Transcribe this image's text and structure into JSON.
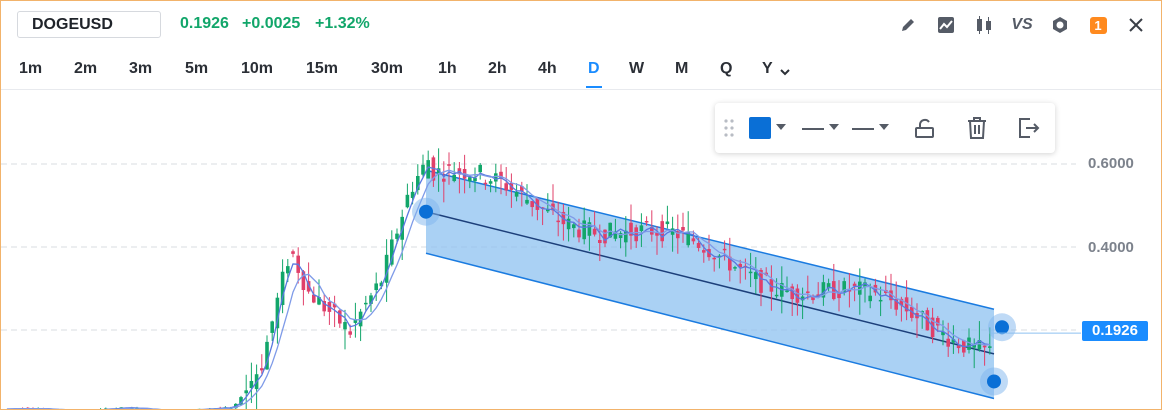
{
  "symbol": "DOGEUSD",
  "quote": {
    "price": "0.1926",
    "change": "+0.0025",
    "change_pct": "+1.32%"
  },
  "header_tools": [
    {
      "name": "pencil-icon"
    },
    {
      "name": "chart-area-icon"
    },
    {
      "name": "candles-icon"
    },
    {
      "name": "compare-vs-icon",
      "label": "VS"
    },
    {
      "name": "settings-icon"
    },
    {
      "name": "notifications-badge",
      "label": "1"
    },
    {
      "name": "close-icon"
    }
  ],
  "intervals": [
    "1m",
    "2m",
    "3m",
    "5m",
    "10m",
    "15m",
    "30m",
    "1h",
    "2h",
    "4h",
    "D",
    "W",
    "M",
    "Q",
    "Y"
  ],
  "active_interval": "D",
  "price_axis": {
    "labels": [
      "0.6000",
      "0.4000"
    ],
    "last": "0.1926"
  },
  "colors": {
    "up": "#12a66a",
    "down": "#e0406a",
    "accent": "#1a8cff",
    "channel": "#8ec1f0",
    "channel_line": "#1a7be0",
    "ma": "#5a78e0"
  },
  "drawing_toolbar": {
    "color": "#0a6fd6",
    "items": [
      "drag-handle",
      "color-picker",
      "line-style",
      "line-width",
      "lock-icon",
      "delete-icon",
      "exit-icon"
    ]
  },
  "chart_data": {
    "type": "candlestick",
    "title": "",
    "xlabel": "",
    "ylabel": "",
    "ylim": [
      0.0,
      0.78
    ],
    "yticks": [
      0.4,
      0.6
    ],
    "grid": true,
    "last_price": 0.1926,
    "channel": {
      "upper": [
        [
          0.58,
          0.25
        ]
      ],
      "lower": [
        [
          0.38,
          0.03
        ]
      ],
      "mid": [
        [
          0.48,
          0.17
        ]
      ]
    }
  }
}
